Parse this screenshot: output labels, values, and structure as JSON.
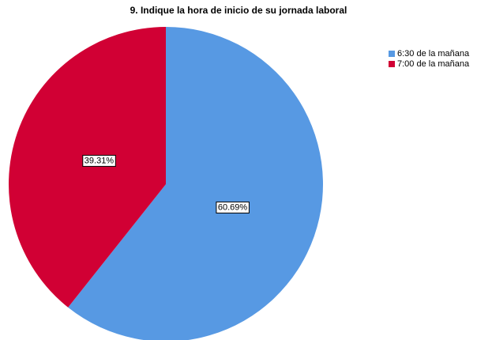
{
  "chart_data": {
    "type": "pie",
    "title": "9. Indique la hora de inicio de su jornada laboral",
    "categories": [
      "6:30 de la mañana",
      "7:00 de la mañana"
    ],
    "values": [
      60.69,
      39.31
    ],
    "value_labels": [
      "60.69%",
      "39.31%"
    ],
    "colors": [
      "#5799e3",
      "#d10034"
    ],
    "legend": "top-right"
  }
}
